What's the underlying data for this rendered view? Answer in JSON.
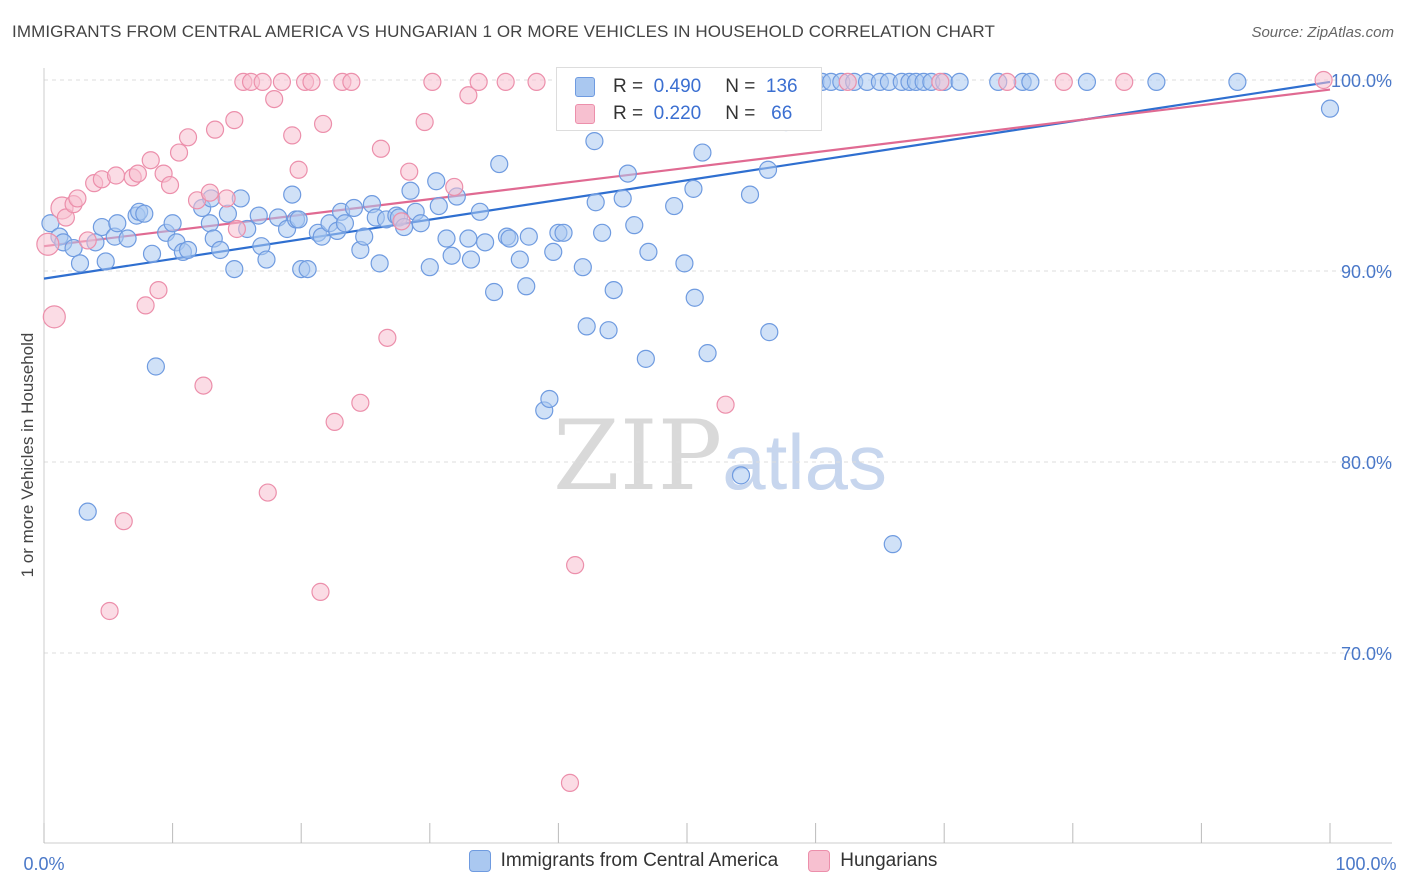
{
  "header": {
    "title": "IMMIGRANTS FROM CENTRAL AMERICA VS HUNGARIAN 1 OR MORE VEHICLES IN HOUSEHOLD CORRELATION CHART",
    "source": "Source: ZipAtlas.com"
  },
  "stats_legend": {
    "row1": {
      "r_label": "R =",
      "r_value": "0.490",
      "n_label": "N =",
      "n_value": "136"
    },
    "row2": {
      "r_label": "R =",
      "r_value": "0.220",
      "n_label": "N =",
      "n_value": "66"
    }
  },
  "watermark": {
    "zip": "ZIP",
    "atlas": "atlas"
  },
  "colors": {
    "blue_fill": "#aac8f0",
    "blue_stroke": "#6f9be0",
    "blue_line": "#2f6fd0",
    "pink_fill": "#f7c0d0",
    "pink_stroke": "#ec8fab",
    "pink_line": "#e06a92",
    "grid": "#dddddd",
    "tick_text": "#4a78c8"
  },
  "chart_data": {
    "type": "scatter",
    "title": "IMMIGRANTS FROM CENTRAL AMERICA VS HUNGARIAN 1 OR MORE VEHICLES IN HOUSEHOLD CORRELATION CHART",
    "xlabel": "",
    "ylabel": "1 or more Vehicles in Household",
    "xlim": [
      0,
      100
    ],
    "ylim": [
      62,
      102
    ],
    "x_tick_labels": [
      "0.0%",
      "100.0%"
    ],
    "y_ticks": [
      70,
      80,
      90,
      100
    ],
    "y_tick_labels": [
      "70.0%",
      "80.0%",
      "90.0%",
      "100.0%"
    ],
    "grid": true,
    "legend_position": "bottom",
    "series": [
      {
        "name": "Immigrants from Central America",
        "color": "#aac8f0",
        "trend": {
          "x": [
            0,
            100
          ],
          "y": [
            89.6,
            99.9
          ]
        },
        "points": [
          [
            0.5,
            92.5
          ],
          [
            1.2,
            91.8
          ],
          [
            1.5,
            91.5
          ],
          [
            2.3,
            91.2
          ],
          [
            2.8,
            90.4
          ],
          [
            3.4,
            77.4
          ],
          [
            4.0,
            91.5
          ],
          [
            4.5,
            92.3
          ],
          [
            4.8,
            90.5
          ],
          [
            5.5,
            91.8
          ],
          [
            5.7,
            92.5
          ],
          [
            6.5,
            91.7
          ],
          [
            7.2,
            92.9
          ],
          [
            7.4,
            93.1
          ],
          [
            7.8,
            93.0
          ],
          [
            8.4,
            90.9
          ],
          [
            8.7,
            85.0
          ],
          [
            9.5,
            92.0
          ],
          [
            10.0,
            92.5
          ],
          [
            10.3,
            91.5
          ],
          [
            10.8,
            91.0
          ],
          [
            11.2,
            91.1
          ],
          [
            12.3,
            93.3
          ],
          [
            12.9,
            92.5
          ],
          [
            13.0,
            93.8
          ],
          [
            13.2,
            91.7
          ],
          [
            13.7,
            91.1
          ],
          [
            14.3,
            93.0
          ],
          [
            14.8,
            90.1
          ],
          [
            15.3,
            93.8
          ],
          [
            15.8,
            92.2
          ],
          [
            16.7,
            92.9
          ],
          [
            16.9,
            91.3
          ],
          [
            17.3,
            90.6
          ],
          [
            18.2,
            92.8
          ],
          [
            18.9,
            92.2
          ],
          [
            19.3,
            94.0
          ],
          [
            19.6,
            92.7
          ],
          [
            19.8,
            92.7
          ],
          [
            20.0,
            90.1
          ],
          [
            20.5,
            90.1
          ],
          [
            21.3,
            92.0
          ],
          [
            21.6,
            91.8
          ],
          [
            22.2,
            92.5
          ],
          [
            22.8,
            92.1
          ],
          [
            23.1,
            93.1
          ],
          [
            23.4,
            92.5
          ],
          [
            24.1,
            93.3
          ],
          [
            24.6,
            91.1
          ],
          [
            24.9,
            91.8
          ],
          [
            25.5,
            93.5
          ],
          [
            25.8,
            92.8
          ],
          [
            26.1,
            90.4
          ],
          [
            26.6,
            92.7
          ],
          [
            27.4,
            92.9
          ],
          [
            27.6,
            92.8
          ],
          [
            28.0,
            92.3
          ],
          [
            28.5,
            94.2
          ],
          [
            28.9,
            93.1
          ],
          [
            29.3,
            92.5
          ],
          [
            30.0,
            90.2
          ],
          [
            30.5,
            94.7
          ],
          [
            30.7,
            93.4
          ],
          [
            31.3,
            91.7
          ],
          [
            31.7,
            90.8
          ],
          [
            32.1,
            93.9
          ],
          [
            33.0,
            91.7
          ],
          [
            33.2,
            90.6
          ],
          [
            33.9,
            93.1
          ],
          [
            34.3,
            91.5
          ],
          [
            35.0,
            88.9
          ],
          [
            35.4,
            95.6
          ],
          [
            36.0,
            91.8
          ],
          [
            36.2,
            91.7
          ],
          [
            37.0,
            90.6
          ],
          [
            37.5,
            89.2
          ],
          [
            37.7,
            91.8
          ],
          [
            38.9,
            82.7
          ],
          [
            39.3,
            83.3
          ],
          [
            39.6,
            91.0
          ],
          [
            40.0,
            92.0
          ],
          [
            40.4,
            92.0
          ],
          [
            40.8,
            99.9
          ],
          [
            41.0,
            98.0
          ],
          [
            41.9,
            90.2
          ],
          [
            42.2,
            87.1
          ],
          [
            42.8,
            96.8
          ],
          [
            42.9,
            93.6
          ],
          [
            43.4,
            92.0
          ],
          [
            43.9,
            86.9
          ],
          [
            44.3,
            89.0
          ],
          [
            45.0,
            93.8
          ],
          [
            45.4,
            95.1
          ],
          [
            45.9,
            92.4
          ],
          [
            46.8,
            85.4
          ],
          [
            47.0,
            91.0
          ],
          [
            48.4,
            99.9
          ],
          [
            49.0,
            93.4
          ],
          [
            49.8,
            90.4
          ],
          [
            50.5,
            94.3
          ],
          [
            50.6,
            88.6
          ],
          [
            51.2,
            96.2
          ],
          [
            51.6,
            85.7
          ],
          [
            52.0,
            98.8
          ],
          [
            53.0,
            99.9
          ],
          [
            54.3,
            99.9
          ],
          [
            54.9,
            94.0
          ],
          [
            56.3,
            95.3
          ],
          [
            56.4,
            86.8
          ],
          [
            57.1,
            99.9
          ],
          [
            57.7,
            97.8
          ],
          [
            58.2,
            99.9
          ],
          [
            60.0,
            99.9
          ],
          [
            60.5,
            99.9
          ],
          [
            61.2,
            99.9
          ],
          [
            62.0,
            99.9
          ],
          [
            63.0,
            99.9
          ],
          [
            64.0,
            99.9
          ],
          [
            65.0,
            99.9
          ],
          [
            65.7,
            99.9
          ],
          [
            66.7,
            99.9
          ],
          [
            67.3,
            99.9
          ],
          [
            67.8,
            99.9
          ],
          [
            68.4,
            99.9
          ],
          [
            69.0,
            99.9
          ],
          [
            70.0,
            99.9
          ],
          [
            71.2,
            99.9
          ],
          [
            74.2,
            99.9
          ],
          [
            76.1,
            99.9
          ],
          [
            76.7,
            99.9
          ],
          [
            81.1,
            99.9
          ],
          [
            86.5,
            99.9
          ],
          [
            92.8,
            99.9
          ],
          [
            54.2,
            79.3
          ],
          [
            66.0,
            75.7
          ],
          [
            100.0,
            98.5
          ]
        ]
      },
      {
        "name": "Hungarians",
        "color": "#f7c0d0",
        "trend": {
          "x": [
            0,
            100
          ],
          "y": [
            91.3,
            99.5
          ]
        },
        "points": [
          [
            0.3,
            91.4
          ],
          [
            0.8,
            87.6
          ],
          [
            1.4,
            93.3
          ],
          [
            1.7,
            92.8
          ],
          [
            2.3,
            93.5
          ],
          [
            2.6,
            93.8
          ],
          [
            3.4,
            91.6
          ],
          [
            3.9,
            94.6
          ],
          [
            4.5,
            94.8
          ],
          [
            5.1,
            72.2
          ],
          [
            5.6,
            95.0
          ],
          [
            6.2,
            76.9
          ],
          [
            6.9,
            94.9
          ],
          [
            7.3,
            95.1
          ],
          [
            7.9,
            88.2
          ],
          [
            8.3,
            95.8
          ],
          [
            8.9,
            89.0
          ],
          [
            9.3,
            95.1
          ],
          [
            9.8,
            94.5
          ],
          [
            10.5,
            96.2
          ],
          [
            11.2,
            97.0
          ],
          [
            11.9,
            93.7
          ],
          [
            12.4,
            84.0
          ],
          [
            12.9,
            94.1
          ],
          [
            13.3,
            97.4
          ],
          [
            14.2,
            93.8
          ],
          [
            14.8,
            97.9
          ],
          [
            15.0,
            92.2
          ],
          [
            15.5,
            99.9
          ],
          [
            16.1,
            99.9
          ],
          [
            17.0,
            99.9
          ],
          [
            17.4,
            78.4
          ],
          [
            17.9,
            99.0
          ],
          [
            18.5,
            99.9
          ],
          [
            19.3,
            97.1
          ],
          [
            19.8,
            95.3
          ],
          [
            20.3,
            99.9
          ],
          [
            20.8,
            99.9
          ],
          [
            21.5,
            73.2
          ],
          [
            21.7,
            97.7
          ],
          [
            22.6,
            82.1
          ],
          [
            23.2,
            99.9
          ],
          [
            23.9,
            99.9
          ],
          [
            24.6,
            83.1
          ],
          [
            26.2,
            96.4
          ],
          [
            26.7,
            86.5
          ],
          [
            27.8,
            92.6
          ],
          [
            28.4,
            95.2
          ],
          [
            29.6,
            97.8
          ],
          [
            30.2,
            99.9
          ],
          [
            31.9,
            94.4
          ],
          [
            33.0,
            99.2
          ],
          [
            33.8,
            99.9
          ],
          [
            35.9,
            99.9
          ],
          [
            38.3,
            99.9
          ],
          [
            41.3,
            74.6
          ],
          [
            40.9,
            63.2
          ],
          [
            46.4,
            99.9
          ],
          [
            51.2,
            99.9
          ],
          [
            53.0,
            83.0
          ],
          [
            62.5,
            99.9
          ],
          [
            69.7,
            99.9
          ],
          [
            74.9,
            99.9
          ],
          [
            79.3,
            99.9
          ],
          [
            84.0,
            99.9
          ],
          [
            99.5,
            100.0
          ]
        ]
      }
    ]
  },
  "bottom_legend": {
    "series1": "Immigrants from Central America",
    "series2": "Hungarians"
  }
}
